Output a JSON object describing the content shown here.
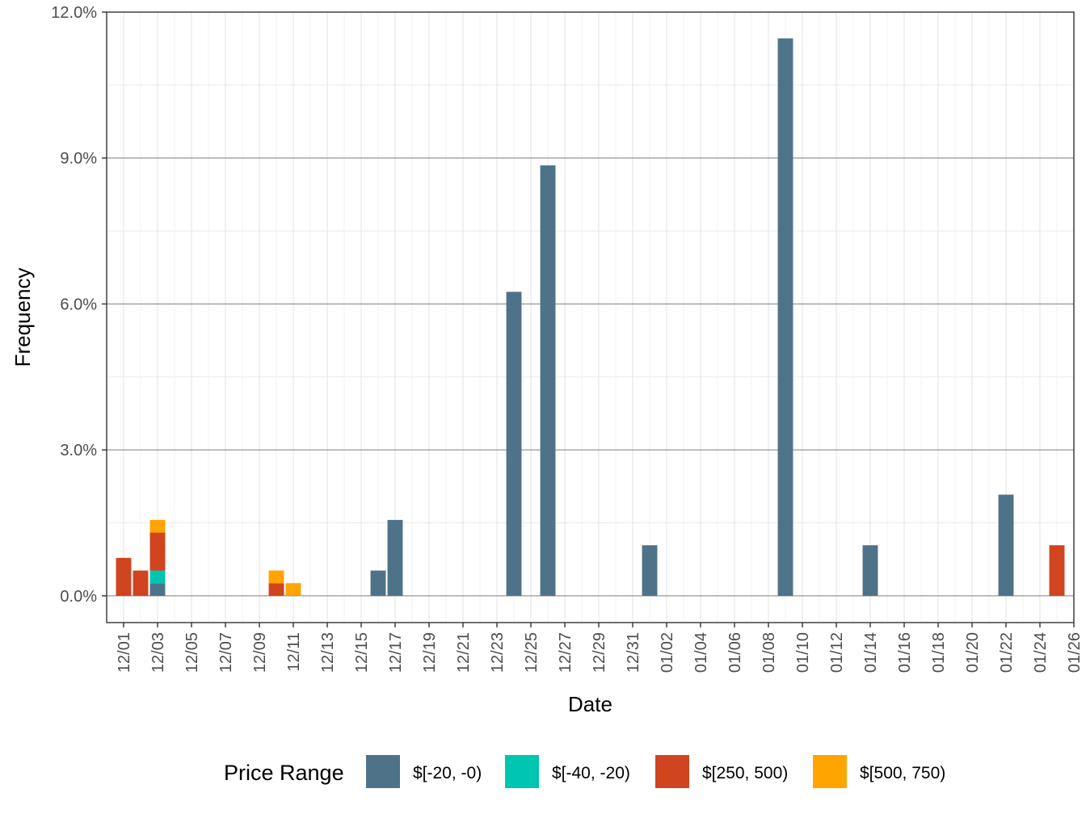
{
  "chart_data": {
    "type": "bar",
    "stacked": true,
    "xlabel": "Date",
    "ylabel": "Frequency",
    "ylim": [
      -0.55,
      12.0
    ],
    "y_ticks": [
      0,
      3,
      6,
      9,
      12
    ],
    "y_tick_labels": [
      "0.0%",
      "3.0%",
      "6.0%",
      "9.0%",
      "12.0%"
    ],
    "x_start": "2024-11-30",
    "x_end": "2025-01-26",
    "x_ticks": [
      "2024-12-01",
      "2024-12-03",
      "2024-12-05",
      "2024-12-07",
      "2024-12-09",
      "2024-12-11",
      "2024-12-13",
      "2024-12-15",
      "2024-12-17",
      "2024-12-19",
      "2024-12-21",
      "2024-12-23",
      "2024-12-25",
      "2024-12-27",
      "2024-12-29",
      "2024-12-31",
      "2025-01-02",
      "2025-01-04",
      "2025-01-06",
      "2025-01-08",
      "2025-01-10",
      "2025-01-12",
      "2025-01-14",
      "2025-01-16",
      "2025-01-18",
      "2025-01-20",
      "2025-01-22",
      "2025-01-24",
      "2025-01-26"
    ],
    "x_tick_labels": [
      "12/01",
      "12/03",
      "12/05",
      "12/07",
      "12/09",
      "12/11",
      "12/13",
      "12/15",
      "12/17",
      "12/19",
      "12/21",
      "12/23",
      "12/25",
      "12/27",
      "12/29",
      "12/31",
      "01/02",
      "01/04",
      "01/06",
      "01/08",
      "01/10",
      "01/12",
      "01/14",
      "01/16",
      "01/18",
      "01/20",
      "01/22",
      "01/24",
      "01/26"
    ],
    "grid": true,
    "legend": {
      "title": "Price Range",
      "position": "bottom"
    },
    "series": [
      {
        "name": "$[-20, -0)",
        "color": "#4e7389",
        "points": [
          {
            "x": "2024-12-03",
            "y": 0.26
          },
          {
            "x": "2024-12-16",
            "y": 0.52
          },
          {
            "x": "2024-12-17",
            "y": 1.56
          },
          {
            "x": "2024-12-24",
            "y": 6.25
          },
          {
            "x": "2024-12-26",
            "y": 8.85
          },
          {
            "x": "2025-01-01",
            "y": 1.04
          },
          {
            "x": "2025-01-09",
            "y": 11.46
          },
          {
            "x": "2025-01-14",
            "y": 1.04
          },
          {
            "x": "2025-01-22",
            "y": 2.08
          }
        ]
      },
      {
        "name": "$[-40, -20)",
        "color": "#00c5b0",
        "points": [
          {
            "x": "2024-12-03",
            "y": 0.26
          }
        ]
      },
      {
        "name": "$[250, 500)",
        "color": "#d0441f",
        "points": [
          {
            "x": "2024-12-01",
            "y": 0.78
          },
          {
            "x": "2024-12-02",
            "y": 0.52
          },
          {
            "x": "2024-12-03",
            "y": 0.78
          },
          {
            "x": "2024-12-10",
            "y": 0.26
          },
          {
            "x": "2025-01-25",
            "y": 1.04
          }
        ]
      },
      {
        "name": "$[500, 750)",
        "color": "#ffa400",
        "points": [
          {
            "x": "2024-12-03",
            "y": 0.26
          },
          {
            "x": "2024-12-10",
            "y": 0.26
          },
          {
            "x": "2024-12-11",
            "y": 0.26
          }
        ]
      }
    ]
  }
}
